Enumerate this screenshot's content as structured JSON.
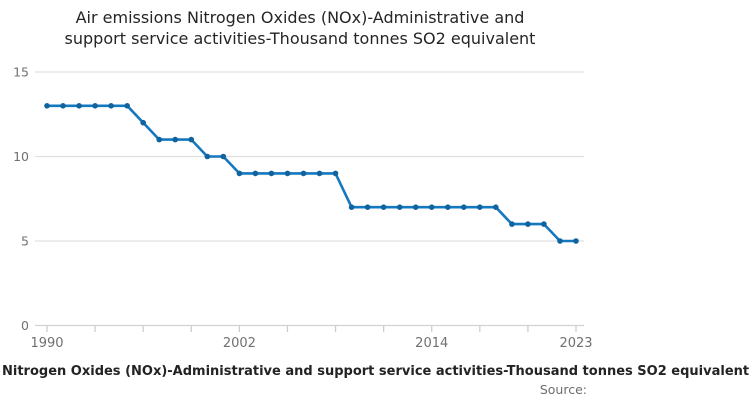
{
  "title_lines": [
    "Air emissions Nitrogen Oxides (NOx)-Administrative and",
    "support service activities-Thousand tonnes SO2 equivalent"
  ],
  "legend_label": "Nitrogen Oxides (NOx)-Administrative and support service activities-Thousand tonnes SO2 equivalent",
  "source_label": "Source:",
  "colors": {
    "line": "#1577bf",
    "marker": "#0f639f",
    "grid": "#e0e0e0",
    "axis": "#d2d2d2",
    "tick": "#c6cedd",
    "axis_label": "#707070",
    "title_text": "#252525",
    "legend_text": "#232323",
    "source_text": "#6e6e6e"
  },
  "chart_data": {
    "type": "line",
    "title": "Air emissions Nitrogen Oxides (NOx)-Administrative and support service activities-Thousand tonnes SO2 equivalent",
    "series_name": "Nitrogen Oxides (NOx)-Administrative and support service activities-Thousand tonnes SO2 equivalent",
    "x": [
      1990,
      1991,
      1992,
      1993,
      1994,
      1995,
      1996,
      1997,
      1998,
      1999,
      2000,
      2001,
      2002,
      2003,
      2004,
      2005,
      2006,
      2007,
      2008,
      2009,
      2010,
      2011,
      2012,
      2013,
      2014,
      2015,
      2016,
      2017,
      2018,
      2019,
      2020,
      2021,
      2022,
      2023
    ],
    "values": [
      13,
      13,
      13,
      13,
      13,
      13,
      12,
      11,
      11,
      11,
      10,
      10,
      9,
      9,
      9,
      9,
      9,
      9,
      9,
      7,
      7,
      7,
      7,
      7,
      7,
      7,
      7,
      7,
      7,
      6,
      6,
      6,
      5,
      5
    ],
    "ylim": [
      0,
      15
    ],
    "yticks": [
      0,
      5,
      10,
      15
    ],
    "xtick_interval": 3,
    "xtick_labels": [
      1990,
      2002,
      2014,
      2023
    ],
    "grid": "horizontal",
    "legend_position": "bottom",
    "marker": "circle"
  }
}
